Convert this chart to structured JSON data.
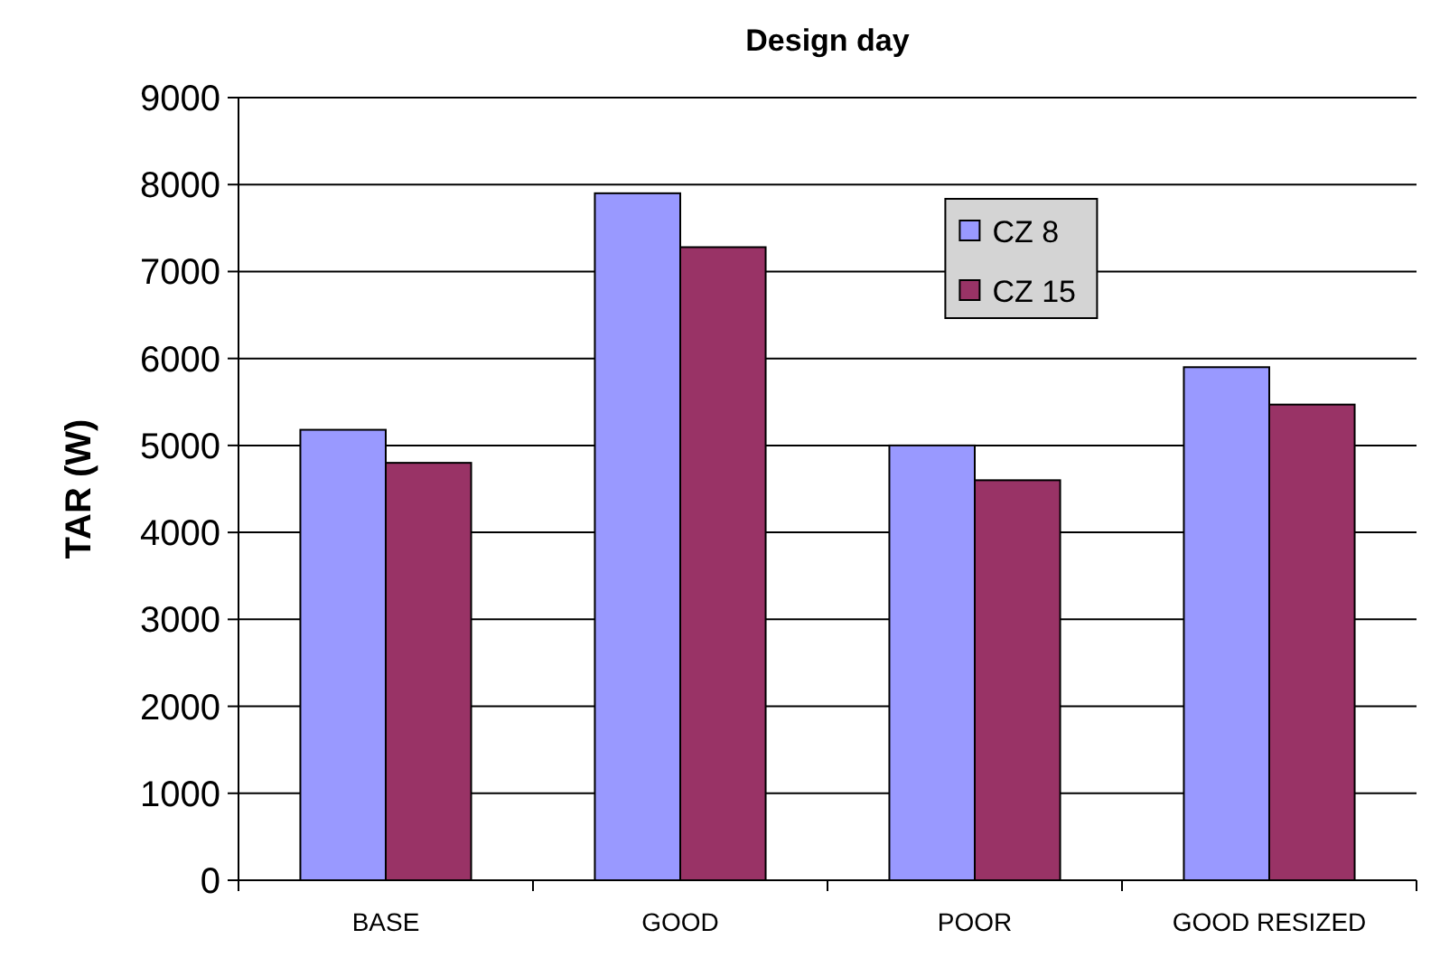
{
  "chart_data": {
    "type": "bar",
    "title": "Design day",
    "ylabel": "TAR (W)",
    "categories": [
      "BASE",
      "GOOD",
      "POOR",
      "GOOD RESIZED"
    ],
    "series": [
      {
        "name": "CZ 8",
        "color": "#9999ff",
        "values": [
          5180,
          7900,
          5000,
          5900
        ]
      },
      {
        "name": "CZ 15",
        "color": "#993366",
        "values": [
          4800,
          7280,
          4600,
          5470
        ]
      }
    ],
    "ylim": [
      0,
      9000
    ],
    "yticks": [
      0,
      1000,
      2000,
      3000,
      4000,
      5000,
      6000,
      7000,
      8000,
      9000
    ],
    "grid": "y",
    "legend": "top right"
  }
}
